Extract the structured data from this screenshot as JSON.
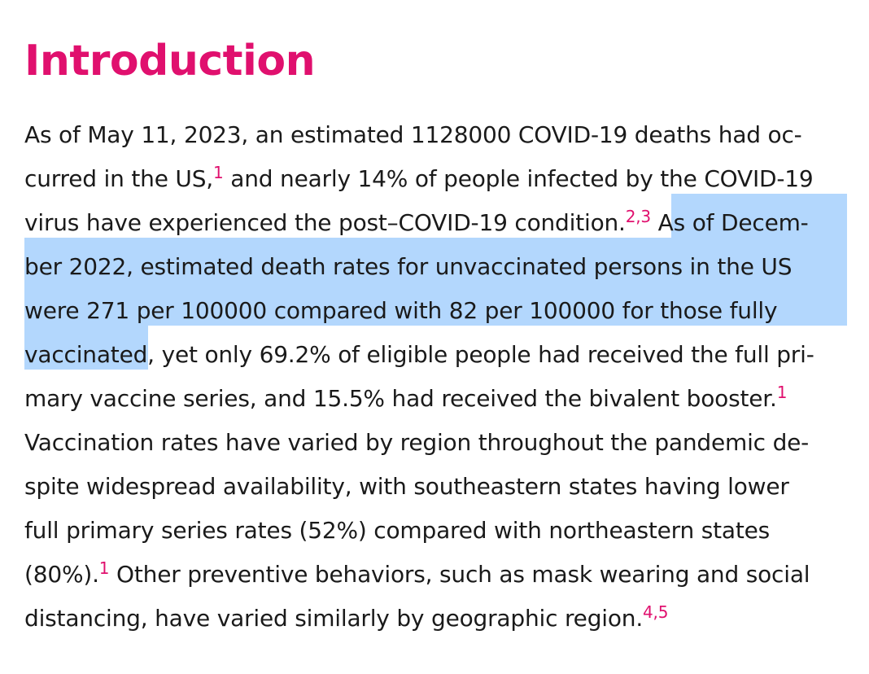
{
  "section": {
    "heading": "Introduction"
  },
  "paragraph": {
    "lines": [
      [
        "As of May 11, 2023, an estimated 1128000 COVID-19 deaths had oc-"
      ],
      [
        "curred in the US,",
        "1",
        " and nearly 14% of people infected by the COVID-19"
      ],
      [
        "virus have experienced the post–COVID-19 condition.",
        "2,3",
        " As of Decem-"
      ],
      [
        "ber 2022, estimated death rates for unvaccinated persons in the US"
      ],
      [
        "were 271 per 100000 compared with 82 per 100000 for those fully"
      ],
      [
        "vaccinated, yet only 69.2% of eligible people had received the full pri-"
      ],
      [
        "mary vaccine series, and 15.5% had received the bivalent booster.",
        "1"
      ],
      [
        "Vaccination rates have varied by region throughout the pandemic de-"
      ],
      [
        "spite widespread availability, with southeastern states having lower"
      ],
      [
        "full primary series rates (52%) compared with northeastern states"
      ],
      [
        "(80%).",
        "1",
        " Other preventive behaviors, such as mask wearing and social"
      ],
      [
        "distancing, have varied similarly by geographic region.",
        "4,5"
      ]
    ]
  },
  "colors": {
    "heading": "#e0106e",
    "reference": "#e0106e",
    "body_text": "#1a1a1a",
    "selection_highlight": "#b3d7fd"
  }
}
